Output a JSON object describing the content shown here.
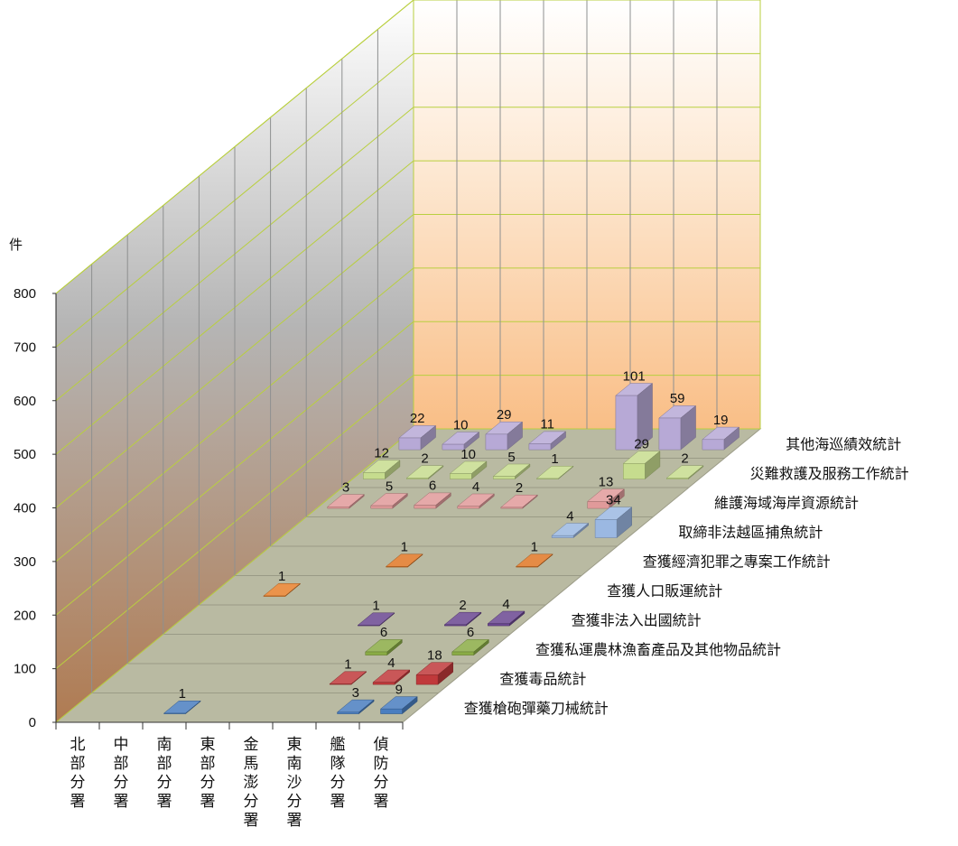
{
  "chart_data": {
    "type": "bar3d",
    "unit_label": "件",
    "ylim": [
      0,
      800
    ],
    "y_ticks": [
      "0",
      "100",
      "200",
      "300",
      "400",
      "500",
      "600",
      "700",
      "800"
    ],
    "categories": [
      "北部分署",
      "中部分署",
      "南部分署",
      "東部分署",
      "金馬澎分署",
      "東南沙分署",
      "艦隊分署",
      "偵防分署"
    ],
    "series": [
      {
        "name": "查獲槍砲彈藥刀械統計",
        "color": "#4a7ec0",
        "values": [
          null,
          null,
          1,
          null,
          null,
          null,
          3,
          9
        ]
      },
      {
        "name": "查獲毒品統計",
        "color": "#c0393b",
        "values": [
          null,
          null,
          null,
          null,
          null,
          1,
          4,
          18
        ]
      },
      {
        "name": "查獲私運農林漁畜產品及其他物品統計",
        "color": "#8aac45",
        "values": [
          null,
          null,
          null,
          null,
          null,
          6,
          null,
          6
        ]
      },
      {
        "name": "查獲非法入出國統計",
        "color": "#6a4690",
        "values": [
          null,
          null,
          null,
          null,
          1,
          null,
          2,
          4
        ]
      },
      {
        "name": "查獲人口販運統計",
        "color": "#e8802b",
        "values": [
          null,
          1,
          null,
          null,
          null,
          null,
          null,
          null
        ]
      },
      {
        "name": "查獲經濟犯罪之專案工作統計",
        "color": "#e07624",
        "values": [
          null,
          null,
          null,
          1,
          null,
          null,
          1,
          null
        ]
      },
      {
        "name": "取締非法越區捕魚統計",
        "color": "#9bb8e2",
        "values": [
          null,
          null,
          null,
          null,
          null,
          null,
          4,
          34
        ]
      },
      {
        "name": "維護海域海岸資源統計",
        "color": "#e09a9a",
        "values": [
          3,
          5,
          6,
          4,
          2,
          null,
          13,
          null
        ]
      },
      {
        "name": "災難救護及服務工作統計",
        "color": "#c6dc8e",
        "values": [
          12,
          2,
          10,
          5,
          1,
          null,
          29,
          2
        ]
      },
      {
        "name": "其他海巡績效統計",
        "color": "#b7a9d6",
        "values": [
          22,
          10,
          29,
          11,
          null,
          101,
          59,
          19
        ]
      }
    ]
  }
}
